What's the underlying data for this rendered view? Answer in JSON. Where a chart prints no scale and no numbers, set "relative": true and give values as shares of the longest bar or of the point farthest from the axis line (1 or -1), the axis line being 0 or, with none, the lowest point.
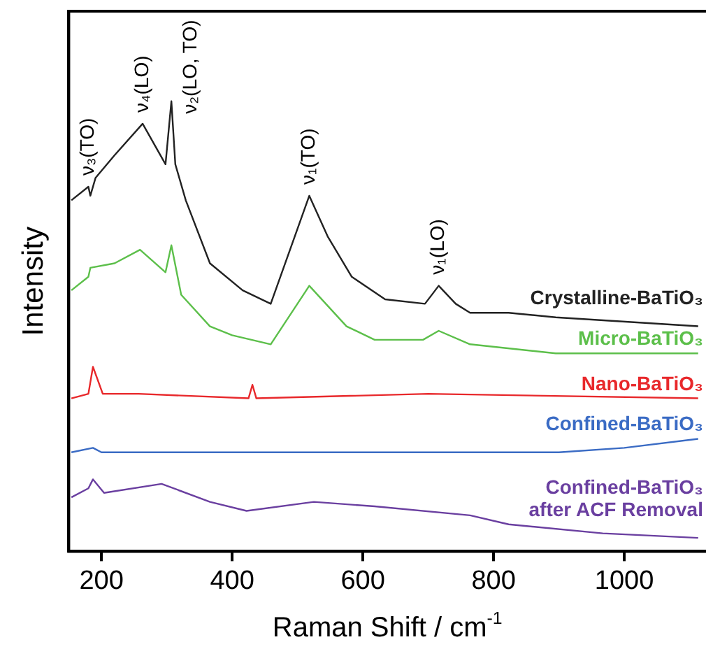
{
  "chart_data": {
    "type": "line",
    "relative": true,
    "xlabel": "Raman Shift / cm$^{-1}$",
    "ylabel": "Intensity",
    "xlim": [
      150,
      1125
    ],
    "xticks": [
      200,
      400,
      600,
      800,
      1000
    ],
    "grid": false,
    "legend": false,
    "marker": "none",
    "line_style": "solid",
    "series": [
      {
        "name": "Crystalline-BaTiO₃",
        "color": "#222222",
        "x": [
          154,
          180,
          183,
          191,
          220,
          263,
          298,
          307,
          313,
          329,
          366,
          416,
          459,
          518,
          546,
          583,
          634,
          695,
          716,
          742,
          764,
          823,
          895,
          1113
        ],
        "values": [
          0.78,
          0.81,
          0.79,
          0.83,
          0.88,
          0.95,
          0.86,
          1.0,
          0.86,
          0.78,
          0.64,
          0.58,
          0.55,
          0.79,
          0.7,
          0.61,
          0.56,
          0.55,
          0.59,
          0.55,
          0.53,
          0.53,
          0.52,
          0.5
        ]
      },
      {
        "name": "Micro-BaTiO₃",
        "color": "#5cbf4a",
        "x": [
          154,
          180,
          183,
          220,
          259,
          298,
          307,
          322,
          366,
          400,
          459,
          518,
          575,
          618,
          692,
          716,
          764,
          895,
          1113
        ],
        "values": [
          0.58,
          0.61,
          0.63,
          0.64,
          0.67,
          0.62,
          0.68,
          0.57,
          0.5,
          0.48,
          0.46,
          0.59,
          0.5,
          0.47,
          0.47,
          0.49,
          0.46,
          0.44,
          0.44
        ]
      },
      {
        "name": "Nano-BaTiO₃",
        "color": "#e8282b",
        "x": [
          154,
          180,
          187,
          202,
          257,
          425,
          431,
          437,
          700,
          1113
        ],
        "values": [
          0.34,
          0.35,
          0.41,
          0.35,
          0.35,
          0.34,
          0.37,
          0.34,
          0.35,
          0.34
        ]
      },
      {
        "name": "Confined-BaTiO₃",
        "color": "#3a6bc4",
        "x": [
          154,
          187,
          200,
          400,
          700,
          900,
          1000,
          1113
        ],
        "values": [
          0.22,
          0.23,
          0.22,
          0.22,
          0.22,
          0.22,
          0.23,
          0.25
        ]
      },
      {
        "name": "Confined-BaTiO₃ after ACF Removal",
        "color": "#6a3fa0",
        "x": [
          154,
          180,
          187,
          204,
          292,
          366,
          422,
          525,
          618,
          764,
          823,
          967,
          1113
        ],
        "values": [
          0.12,
          0.14,
          0.16,
          0.13,
          0.15,
          0.11,
          0.09,
          0.11,
          0.1,
          0.08,
          0.06,
          0.04,
          0.03
        ]
      }
    ],
    "annotations": [
      {
        "text": "ν₃(TO)",
        "x": 180,
        "y": 0.81
      },
      {
        "text": "ν₄(LO)",
        "x": 263,
        "y": 0.95
      },
      {
        "text": "ν₂(LO, TO)",
        "x": 307,
        "y": 1.0
      },
      {
        "text": "ν₁(TO)",
        "x": 518,
        "y": 0.79
      },
      {
        "text": "ν₁(LO)",
        "x": 716,
        "y": 0.59
      }
    ]
  }
}
